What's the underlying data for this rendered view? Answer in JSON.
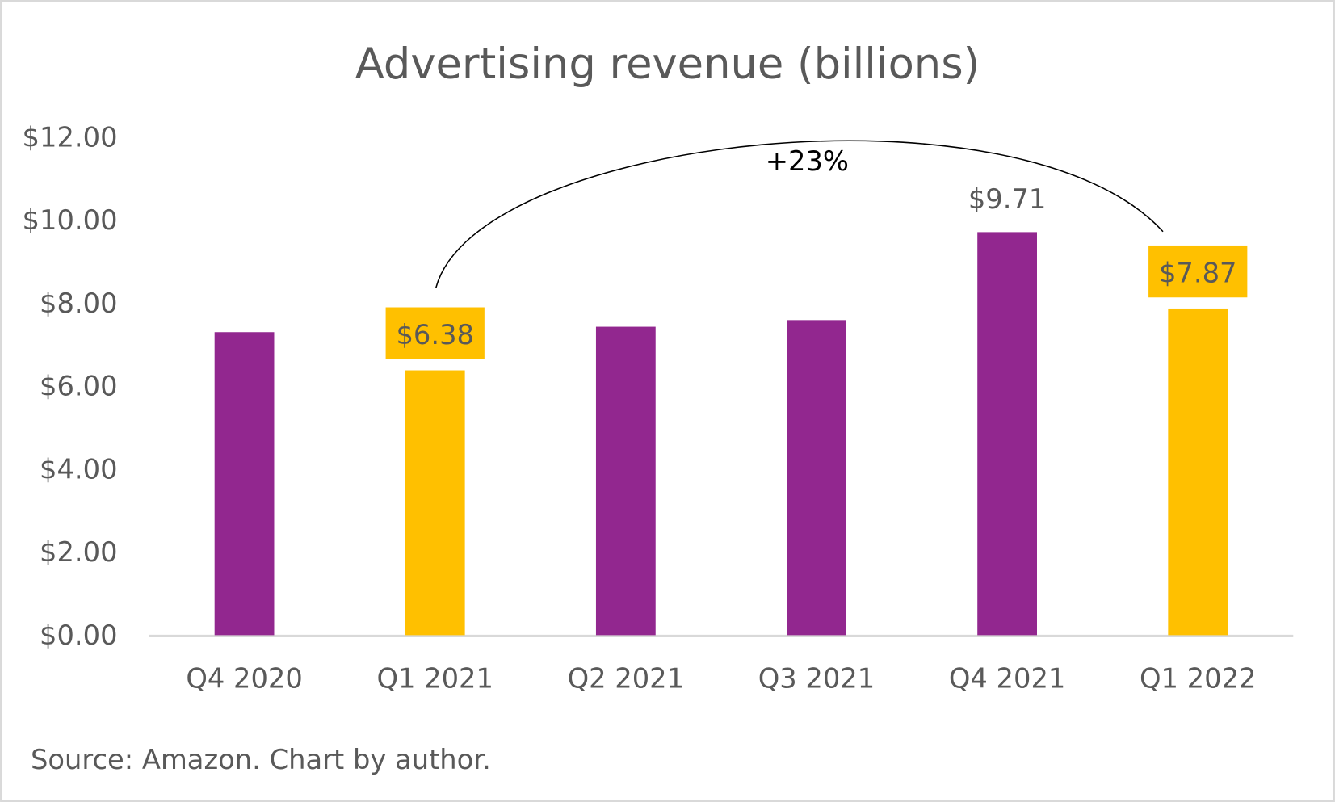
{
  "chart_data": {
    "type": "bar",
    "title": "Advertising revenue (billions)",
    "xlabel": "",
    "ylabel": "",
    "ylim": [
      0,
      12
    ],
    "yticks": [
      "$0.00",
      "$2.00",
      "$4.00",
      "$6.00",
      "$8.00",
      "$10.00",
      "$12.00"
    ],
    "categories": [
      "Q4 2020",
      "Q1 2021",
      "Q2 2021",
      "Q3 2021",
      "Q4 2021",
      "Q1 2022"
    ],
    "values": [
      7.3,
      6.38,
      7.43,
      7.59,
      9.71,
      7.87
    ],
    "highlight": [
      false,
      true,
      false,
      false,
      false,
      true
    ],
    "data_labels": [
      "",
      "$6.38",
      "",
      "",
      "$9.71",
      "$7.87"
    ],
    "colors": {
      "default": "#92278F",
      "highlight": "#FFC000",
      "text": "#595959",
      "axis": "#D9D9D9"
    },
    "annotation": {
      "text": "+23%",
      "from": "Q1 2021",
      "to": "Q1 2022"
    },
    "grid": false,
    "legend": "none",
    "source": "Source: Amazon. Chart by author."
  }
}
